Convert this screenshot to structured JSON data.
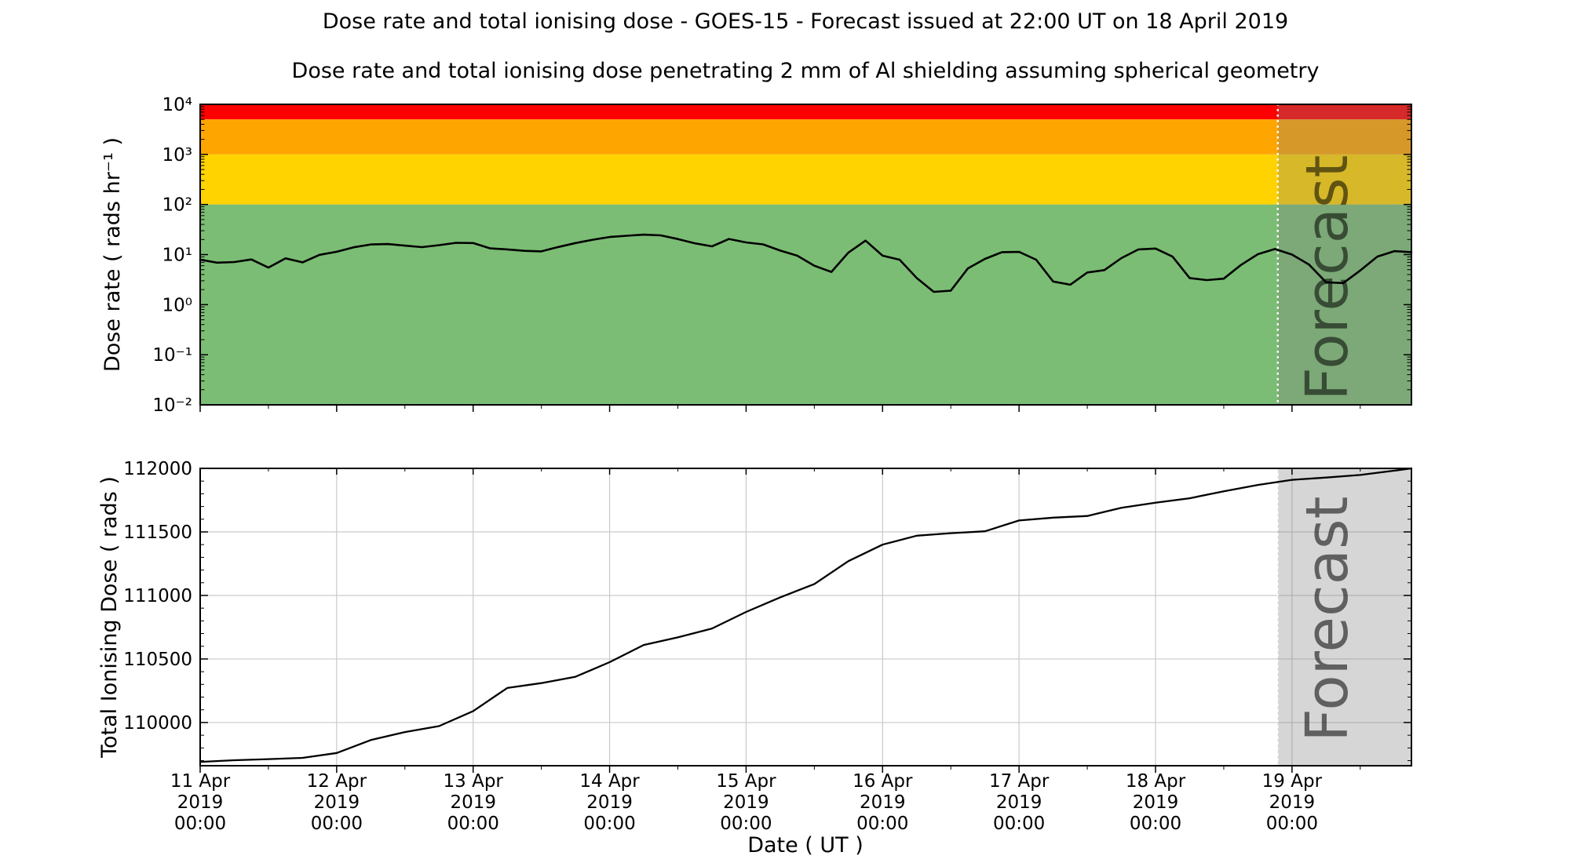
{
  "header": {
    "title": "Dose rate and total ionising dose - GOES-15 - Forecast issued at 22:00 UT on 18 April 2019",
    "subtitle": "Dose rate and total ionising dose penetrating 2 mm of Al shielding assuming spherical geometry"
  },
  "x_axis": {
    "label": "Date ( UT )",
    "tick_dates": [
      "11 Apr",
      "12 Apr",
      "13 Apr",
      "14 Apr",
      "15 Apr",
      "16 Apr",
      "17 Apr",
      "18 Apr",
      "19 Apr"
    ],
    "tick_year": "2019",
    "tick_time": "00:00",
    "hours_span": 213,
    "major_tick_hours": 24,
    "minor_tick_hours": 12
  },
  "forecast": {
    "label": "Forecast",
    "start_hours": 189.5,
    "overlay_color": "#808080",
    "overlay_opacity": 0.32,
    "divider_color": "#ffffff",
    "watermark_color": "#8c8c8c",
    "watermark_opacity": 0.55
  },
  "chart_data": [
    {
      "type": "line",
      "name": "dose_rate",
      "ylabel": "Dose rate ( rads hr⁻¹ )",
      "y_scale": "log",
      "ylim": [
        0.01,
        10000
      ],
      "ytick_exponents": [
        -2,
        -1,
        0,
        1,
        2,
        3,
        4
      ],
      "ytick_labels": [
        "10⁻²",
        "10⁻¹",
        "10⁰",
        "10¹",
        "10²",
        "10³",
        "10⁴"
      ],
      "grid": false,
      "line_color": "#000000",
      "bands": [
        {
          "name": "red",
          "from": 5000,
          "to": 10000,
          "color": "#ff0000"
        },
        {
          "name": "orange",
          "from": 1000,
          "to": 5000,
          "color": "#ffa500"
        },
        {
          "name": "yellow",
          "from": 100,
          "to": 1000,
          "color": "#ffd300"
        },
        {
          "name": "green",
          "from": 0.01,
          "to": 100,
          "color": "#7bbd74"
        }
      ],
      "x_hours": [
        0,
        3,
        6,
        9,
        12,
        15,
        18,
        21,
        24,
        27,
        30,
        33,
        36,
        39,
        42,
        45,
        48,
        51,
        54,
        57,
        60,
        63,
        66,
        69,
        72,
        75,
        78,
        81,
        84,
        87,
        90,
        93,
        96,
        99,
        102,
        105,
        108,
        111,
        114,
        117,
        120,
        123,
        126,
        129,
        132,
        135,
        138,
        141,
        144,
        147,
        150,
        153,
        156,
        159,
        162,
        165,
        168,
        171,
        174,
        177,
        180,
        183,
        186,
        189,
        192,
        195,
        198,
        201,
        204,
        207,
        210,
        213
      ],
      "values": [
        7.9,
        6.9,
        7.1,
        8.0,
        5.5,
        8.4,
        7.0,
        9.9,
        11.4,
        14.0,
        15.9,
        16.2,
        15.1,
        14.1,
        15.4,
        17.2,
        17.0,
        13.3,
        12.7,
        11.9,
        11.6,
        14.2,
        17.0,
        19.8,
        22.4,
        23.8,
        25.0,
        24.2,
        20.4,
        16.8,
        14.6,
        20.5,
        17.5,
        16.0,
        12.0,
        9.5,
        6.0,
        4.5,
        11.0,
        19.0,
        9.5,
        7.9,
        3.4,
        1.8,
        1.9,
        5.3,
        8.2,
        11.2,
        11.3,
        7.9,
        2.9,
        2.5,
        4.4,
        4.9,
        8.5,
        12.7,
        13.2,
        9.1,
        3.4,
        3.1,
        3.3,
        6.2,
        10.2,
        12.9,
        10.0,
        6.3,
        2.8,
        2.7,
        4.8,
        9.1,
        11.7,
        11.2
      ]
    },
    {
      "type": "line",
      "name": "total_ionising_dose",
      "ylabel": "Total Ionising Dose ( rads )",
      "y_scale": "linear",
      "ylim": [
        109660,
        112000
      ],
      "yticks": [
        110000,
        110500,
        111000,
        111500,
        112000
      ],
      "y_minor_step": 100,
      "grid": true,
      "grid_color": "#c9c9c9",
      "line_color": "#000000",
      "x_hours": [
        0,
        6,
        12,
        18,
        24,
        30,
        36,
        42,
        48,
        54,
        60,
        66,
        72,
        78,
        84,
        90,
        96,
        102,
        108,
        114,
        120,
        126,
        132,
        138,
        144,
        150,
        156,
        162,
        168,
        174,
        180,
        186,
        192,
        198,
        204,
        210,
        213
      ],
      "values": [
        109690,
        109703,
        109712,
        109722,
        109760,
        109862,
        109925,
        109972,
        110090,
        110272,
        110310,
        110360,
        110475,
        110610,
        110670,
        110740,
        110870,
        110985,
        111090,
        111270,
        111400,
        111470,
        111490,
        111505,
        111590,
        111612,
        111625,
        111690,
        111730,
        111765,
        111820,
        111870,
        111910,
        111928,
        111948,
        111982,
        112000
      ]
    }
  ]
}
